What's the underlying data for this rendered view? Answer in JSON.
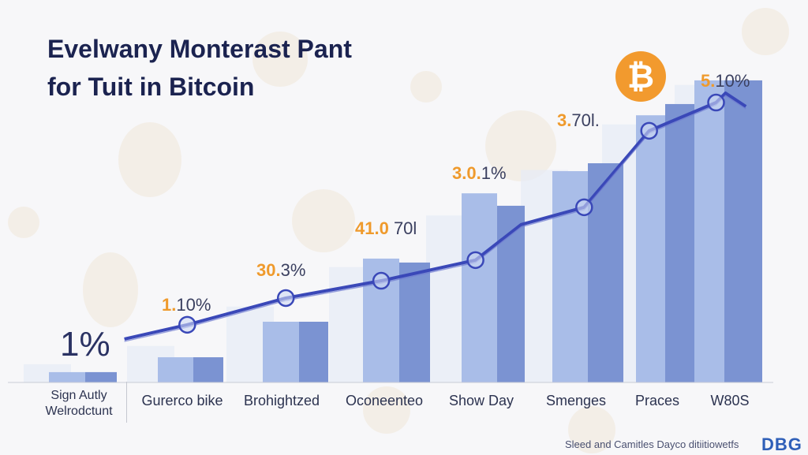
{
  "title_lines": [
    "Evelwany Monterast Pant",
    "for Tuit in Bitcoin"
  ],
  "chart_data": {
    "type": "bar",
    "title": "Evelwany Monterast Pant for Tuit in Bitcoin",
    "categories": [
      "Sign Autly Welrodctunt",
      "Gurerco bike",
      "Brohightzed",
      "Oconeenteo",
      "Show Day",
      "Smenges",
      "Praces",
      "W80S"
    ],
    "category_lines": [
      [
        "Sign Autly",
        "Welrodctunt"
      ],
      [
        "Gurerco bike"
      ],
      [
        "Brohightzed"
      ],
      [
        "Oconeenteo"
      ],
      [
        "Show Day"
      ],
      [
        "Smenges"
      ],
      [
        "Praces"
      ],
      [
        "W80S"
      ]
    ],
    "ylim": [
      0,
      100
    ],
    "grid": false,
    "series": [
      {
        "name": "light",
        "color": "#a9bde8",
        "values": [
          3.4,
          8.3,
          20,
          40.8,
          62.3,
          69.6,
          88,
          99.5
        ]
      },
      {
        "name": "dark",
        "color": "#7b93d2",
        "values": [
          3.4,
          8.3,
          20,
          39.5,
          58.2,
          72.2,
          91.7,
          99.5
        ]
      }
    ],
    "line": {
      "color": "#3a48b8",
      "x": [
        0.44,
        1.05,
        2.04,
        2.97,
        3.94,
        4.42,
        5.1,
        5.9,
        6.81,
        6.94,
        7.22
      ],
      "y": [
        14.3,
        19,
        27.8,
        33.5,
        40.3,
        52,
        57.7,
        82.9,
        92.2,
        95.3,
        90.9
      ],
      "markers": [
        1,
        2,
        3,
        4,
        6,
        7,
        8
      ]
    },
    "annotations": [
      {
        "accent": "",
        "rest": "1%",
        "style": "big"
      },
      {
        "accent": "1.",
        "rest": "10%"
      },
      {
        "accent": "30.",
        "rest": "3%"
      },
      {
        "accent": "41.0",
        "rest": " 70l"
      },
      {
        "accent": "3.0.",
        "rest": "1%"
      },
      {
        "accent": "3.",
        "rest": "70l."
      },
      {
        "accent": "5.",
        "rest": "10%"
      }
    ]
  },
  "bitcoin_icon": "bitcoin-icon",
  "footer": {
    "text": "Sleed and Camitles Dayco ditiitiowetfs",
    "logo": "DBG"
  },
  "colors": {
    "accent": "#ef9a2c",
    "title": "#1b2350",
    "bitcoin": "#f29a2e"
  }
}
